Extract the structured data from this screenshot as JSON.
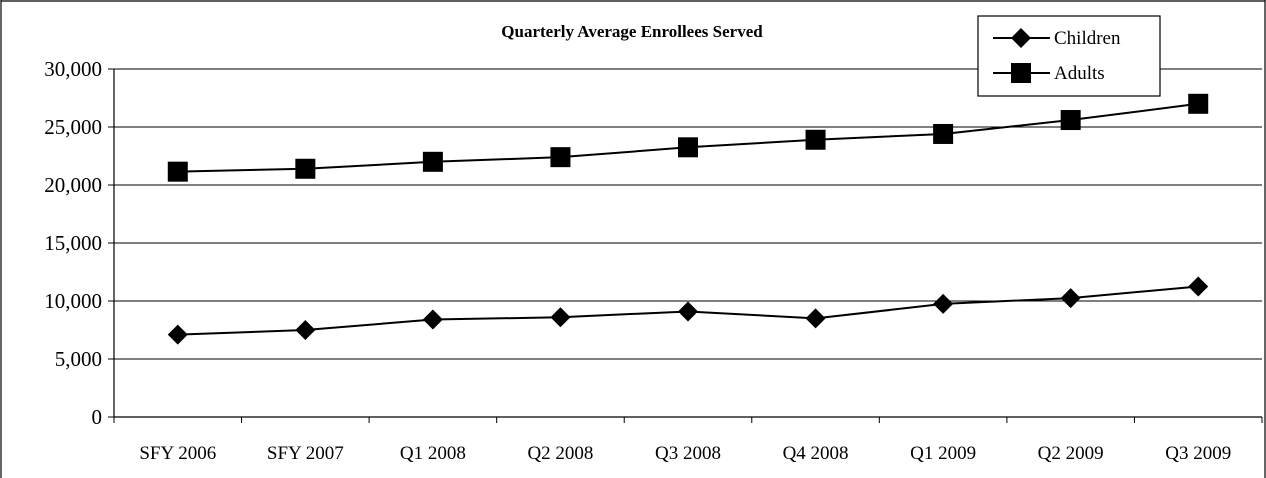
{
  "chart_data": {
    "type": "line",
    "title": "Quarterly Average Enrollees Served",
    "xlabel": "",
    "ylabel": "",
    "categories": [
      "SFY 2006",
      "SFY 2007",
      "Q1 2008",
      "Q2 2008",
      "Q3 2008",
      "Q4 2008",
      "Q1 2009",
      "Q2 2009",
      "Q3 2009"
    ],
    "ylim": [
      0,
      30000
    ],
    "yticks": [
      0,
      5000,
      10000,
      15000,
      20000,
      25000,
      30000
    ],
    "ytick_labels": [
      "0",
      "5,000",
      "10,000",
      "15,000",
      "20,000",
      "25,000",
      "30,000"
    ],
    "grid": true,
    "legend_position": "top-right",
    "series": [
      {
        "name": "Children",
        "marker": "diamond",
        "color": "#000000",
        "values": [
          7100,
          7500,
          8400,
          8600,
          9100,
          8500,
          9750,
          10250,
          11250
        ]
      },
      {
        "name": "Adults",
        "marker": "square",
        "color": "#000000",
        "values": [
          21150,
          21400,
          22000,
          22400,
          23250,
          23900,
          24400,
          25600,
          27000
        ]
      }
    ]
  }
}
